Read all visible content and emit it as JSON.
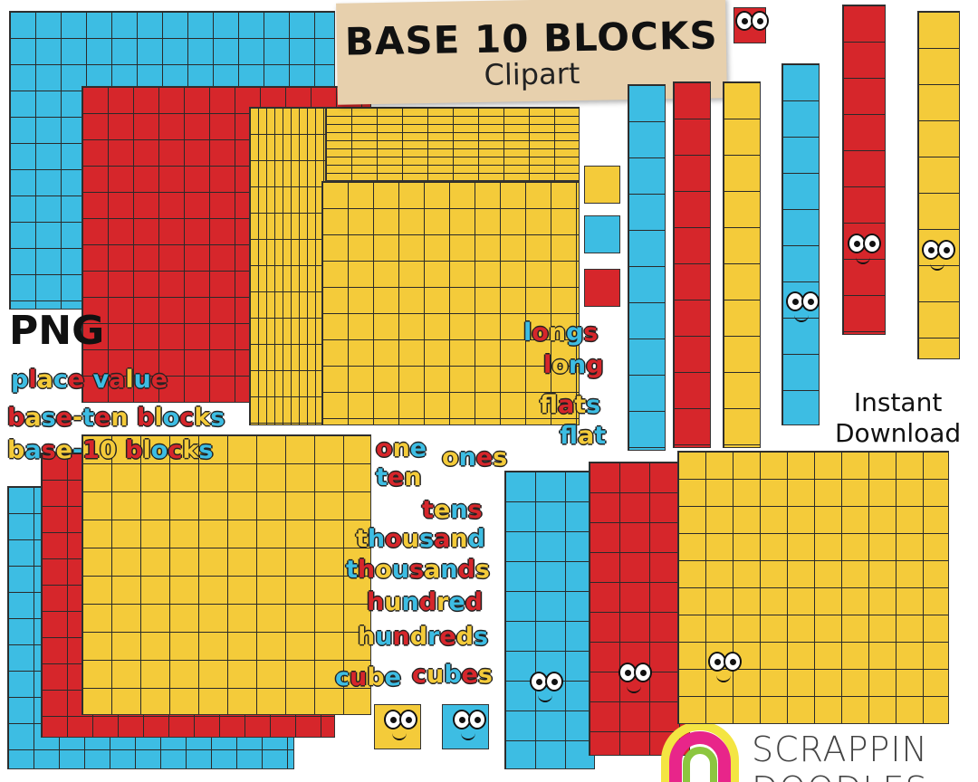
{
  "title": {
    "main": "BASE 10 BLOCKS",
    "sub": "Clipart"
  },
  "format_label": "PNG",
  "instant_download": [
    "Instant",
    "Download"
  ],
  "keywords_left": [
    "place value",
    "base-ten blocks",
    "base-10 blocks"
  ],
  "keywords_right_top": [
    "longs",
    "long",
    "flats",
    "flat"
  ],
  "keywords_center": [
    "one",
    "ones",
    "ten",
    "tens",
    "thousand",
    "thousands",
    "hundred",
    "hundreds",
    "cube",
    "cubes"
  ],
  "brand": {
    "name": "SCRAPPIN DOODLES"
  },
  "colors": {
    "red": "#d6262b",
    "yellow": "#f4cb3a",
    "blue": "#3dbde3",
    "paper": "#e7d0ad"
  }
}
